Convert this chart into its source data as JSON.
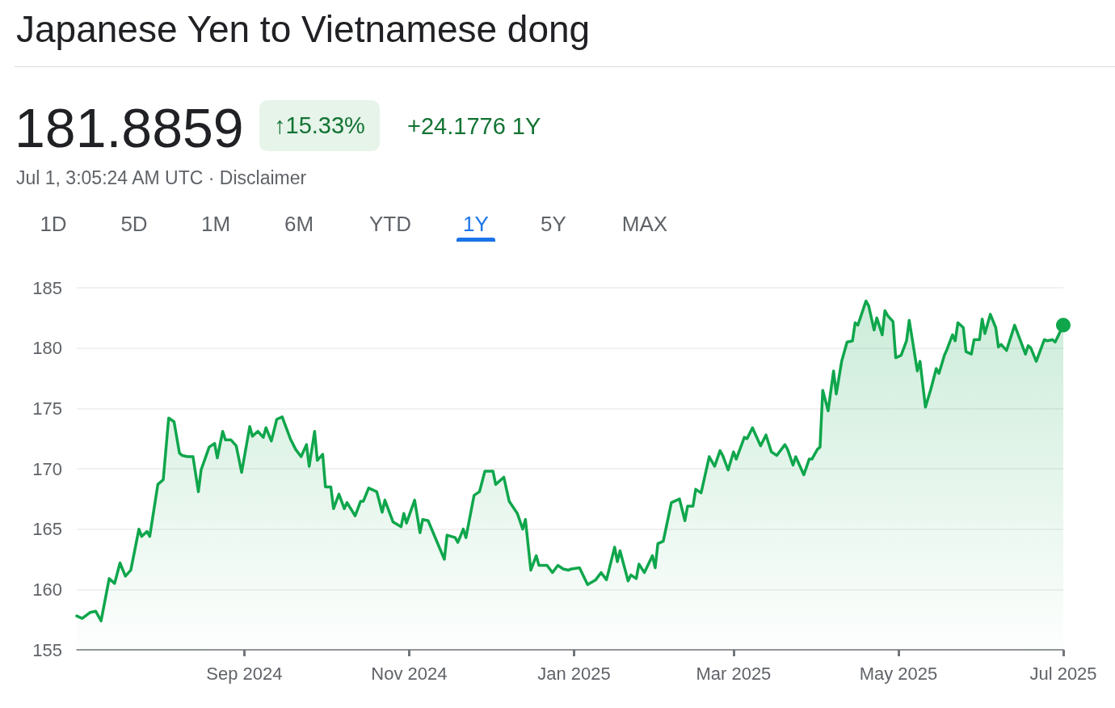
{
  "chart_data": {
    "type": "area",
    "title": "Japanese Yen to Vietnamese dong",
    "annotations": [
      "181.8859",
      "↑15.33%",
      "+24.1776 1Y",
      "Jul 1, 3:05:24 AM UTC · Disclaimer",
      "1D",
      "5D",
      "1M",
      "6M",
      "YTD",
      "1Y",
      "5Y",
      "MAX"
    ],
    "x": [
      "2024-07-01",
      "2024-07-03",
      "2024-07-06",
      "2024-07-08",
      "2024-07-10",
      "2024-07-13",
      "2024-07-15",
      "2024-07-17",
      "2024-07-19",
      "2024-07-21",
      "2024-07-24",
      "2024-07-25",
      "2024-07-27",
      "2024-07-28",
      "2024-07-31",
      "2024-08-02",
      "2024-08-04",
      "2024-08-06",
      "2024-08-08",
      "2024-08-09",
      "2024-08-11",
      "2024-08-13",
      "2024-08-15",
      "2024-08-16",
      "2024-08-19",
      "2024-08-21",
      "2024-08-22",
      "2024-08-24",
      "2024-08-25",
      "2024-08-27",
      "2024-08-29",
      "2024-08-31",
      "2024-09-03",
      "2024-09-04",
      "2024-09-06",
      "2024-09-08",
      "2024-09-09",
      "2024-09-11",
      "2024-09-13",
      "2024-09-15",
      "2024-09-18",
      "2024-09-20",
      "2024-09-22",
      "2024-09-24",
      "2024-09-25",
      "2024-09-27",
      "2024-09-28",
      "2024-09-30",
      "2024-10-01",
      "2024-10-03",
      "2024-10-04",
      "2024-10-06",
      "2024-10-08",
      "2024-10-09",
      "2024-10-12",
      "2024-10-14",
      "2024-10-15",
      "2024-10-17",
      "2024-10-20",
      "2024-10-22",
      "2024-10-23",
      "2024-10-26",
      "2024-10-29",
      "2024-10-30",
      "2024-10-31",
      "2024-11-03",
      "2024-11-05",
      "2024-11-06",
      "2024-11-08",
      "2024-11-14",
      "2024-11-15",
      "2024-11-18",
      "2024-11-19",
      "2024-11-21",
      "2024-11-22",
      "2024-11-25",
      "2024-11-27",
      "2024-11-29",
      "2024-12-02",
      "2024-12-03",
      "2024-12-06",
      "2024-12-08",
      "2024-12-11",
      "2024-12-13",
      "2024-12-14",
      "2024-12-16",
      "2024-12-18",
      "2024-12-19",
      "2024-12-22",
      "2024-12-24",
      "2024-12-26",
      "2024-12-28",
      "2024-12-30",
      "2024-12-31",
      "2025-01-03",
      "2025-01-06",
      "2025-01-09",
      "2025-01-11",
      "2025-01-13",
      "2025-01-16",
      "2025-01-17",
      "2025-01-18",
      "2025-01-21",
      "2025-01-22",
      "2025-01-24",
      "2025-01-25",
      "2025-01-27",
      "2025-01-30",
      "2025-01-31",
      "2025-02-01",
      "2025-02-03",
      "2025-02-06",
      "2025-02-09",
      "2025-02-11",
      "2025-02-12",
      "2025-02-14",
      "2025-02-15",
      "2025-02-17",
      "2025-02-20",
      "2025-02-22",
      "2025-02-24",
      "2025-02-25",
      "2025-02-27",
      "2025-03-01",
      "2025-03-02",
      "2025-03-05",
      "2025-03-06",
      "2025-03-08",
      "2025-03-11",
      "2025-03-13",
      "2025-03-15",
      "2025-03-17",
      "2025-03-20",
      "2025-03-21",
      "2025-03-23",
      "2025-03-24",
      "2025-03-27",
      "2025-03-29",
      "2025-03-30",
      "2025-04-01",
      "2025-04-02",
      "2025-04-03",
      "2025-04-05",
      "2025-04-07",
      "2025-04-08",
      "2025-04-10",
      "2025-04-12",
      "2025-04-14",
      "2025-04-15",
      "2025-04-16",
      "2025-04-19",
      "2025-04-20",
      "2025-04-22",
      "2025-04-23",
      "2025-04-25",
      "2025-04-26",
      "2025-04-27",
      "2025-04-29",
      "2025-04-30",
      "2025-05-02",
      "2025-05-04",
      "2025-05-05",
      "2025-05-08",
      "2025-05-09",
      "2025-05-11",
      "2025-05-13",
      "2025-05-15",
      "2025-05-16",
      "2025-05-18",
      "2025-05-19",
      "2025-05-21",
      "2025-05-22",
      "2025-05-23",
      "2025-05-25",
      "2025-05-26",
      "2025-05-28",
      "2025-05-29",
      "2025-05-31",
      "2025-06-01",
      "2025-06-02",
      "2025-06-04",
      "2025-06-06",
      "2025-06-07",
      "2025-06-08",
      "2025-06-10",
      "2025-06-13",
      "2025-06-15",
      "2025-06-17",
      "2025-06-18",
      "2025-06-19",
      "2025-06-21",
      "2025-06-24",
      "2025-06-25",
      "2025-06-27",
      "2025-06-28",
      "2025-07-01"
    ],
    "values": [
      157.8,
      157.6,
      158.1,
      158.2,
      157.4,
      160.9,
      160.5,
      162.2,
      161.1,
      161.6,
      165.0,
      164.4,
      164.8,
      164.4,
      168.7,
      169.1,
      174.2,
      173.9,
      171.3,
      171.1,
      171.0,
      171.0,
      168.1,
      169.9,
      171.8,
      172.1,
      170.9,
      173.1,
      172.4,
      172.4,
      171.9,
      169.7,
      173.5,
      172.7,
      173.1,
      172.6,
      173.4,
      172.3,
      174.1,
      174.3,
      172.5,
      171.6,
      171.0,
      172.0,
      170.2,
      173.1,
      170.7,
      171.2,
      168.5,
      168.5,
      166.7,
      167.9,
      166.7,
      167.2,
      166.1,
      167.3,
      167.3,
      168.4,
      168.1,
      166.4,
      167.4,
      165.6,
      165.2,
      166.3,
      165.5,
      167.4,
      164.7,
      165.8,
      165.7,
      162.5,
      164.5,
      164.3,
      163.9,
      165.0,
      164.3,
      167.8,
      168.1,
      169.8,
      169.8,
      168.7,
      169.3,
      167.3,
      166.3,
      165.0,
      165.8,
      161.6,
      162.8,
      162.0,
      162.0,
      161.4,
      162.0,
      161.7,
      161.6,
      161.7,
      161.8,
      160.4,
      160.8,
      161.4,
      160.8,
      163.5,
      162.3,
      163.2,
      160.7,
      161.2,
      160.9,
      162.1,
      161.4,
      162.8,
      161.8,
      163.8,
      164.0,
      167.2,
      167.5,
      165.7,
      166.9,
      166.9,
      168.3,
      168.0,
      171.0,
      170.2,
      171.5,
      171.1,
      169.9,
      171.4,
      170.8,
      172.6,
      172.5,
      173.4,
      171.9,
      172.8,
      171.4,
      171.1,
      172.0,
      171.6,
      170.3,
      171.0,
      169.5,
      170.8,
      170.8,
      171.6,
      171.8,
      176.5,
      174.8,
      178.1,
      176.2,
      178.9,
      180.5,
      180.6,
      182.1,
      181.9,
      183.9,
      183.5,
      181.5,
      182.5,
      181.1,
      183.1,
      182.7,
      182.2,
      179.2,
      179.4,
      180.6,
      182.3,
      178.1,
      178.9,
      175.1,
      176.6,
      178.3,
      177.9,
      179.4,
      179.9,
      181.1,
      180.6,
      182.1,
      181.7,
      179.7,
      179.5,
      180.7,
      180.7,
      182.4,
      181.2,
      182.8,
      181.7,
      180.1,
      180.3,
      179.8,
      181.9,
      180.7,
      179.5,
      180.2,
      180.0,
      178.9,
      180.7,
      180.6,
      180.7,
      180.5,
      181.9
    ],
    "color": "#0fa64c",
    "xlim": [
      "2024-07-01",
      "2025-07-01"
    ],
    "xticks": [
      {
        "value": "2024-09-01",
        "label": "Sep 2024"
      },
      {
        "value": "2024-11-01",
        "label": "Nov 2024"
      },
      {
        "value": "2025-01-01",
        "label": "Jan 2025"
      },
      {
        "value": "2025-03-01",
        "label": "Mar 2025"
      },
      {
        "value": "2025-05-01",
        "label": "May 2025"
      },
      {
        "value": "2025-07-01",
        "label": "Jul 2025"
      }
    ],
    "ylim": [
      155,
      185
    ],
    "yticks": [
      155,
      160,
      165,
      170,
      175,
      180,
      185
    ],
    "grid": "y",
    "marker": "none",
    "line_style": "solid"
  }
}
